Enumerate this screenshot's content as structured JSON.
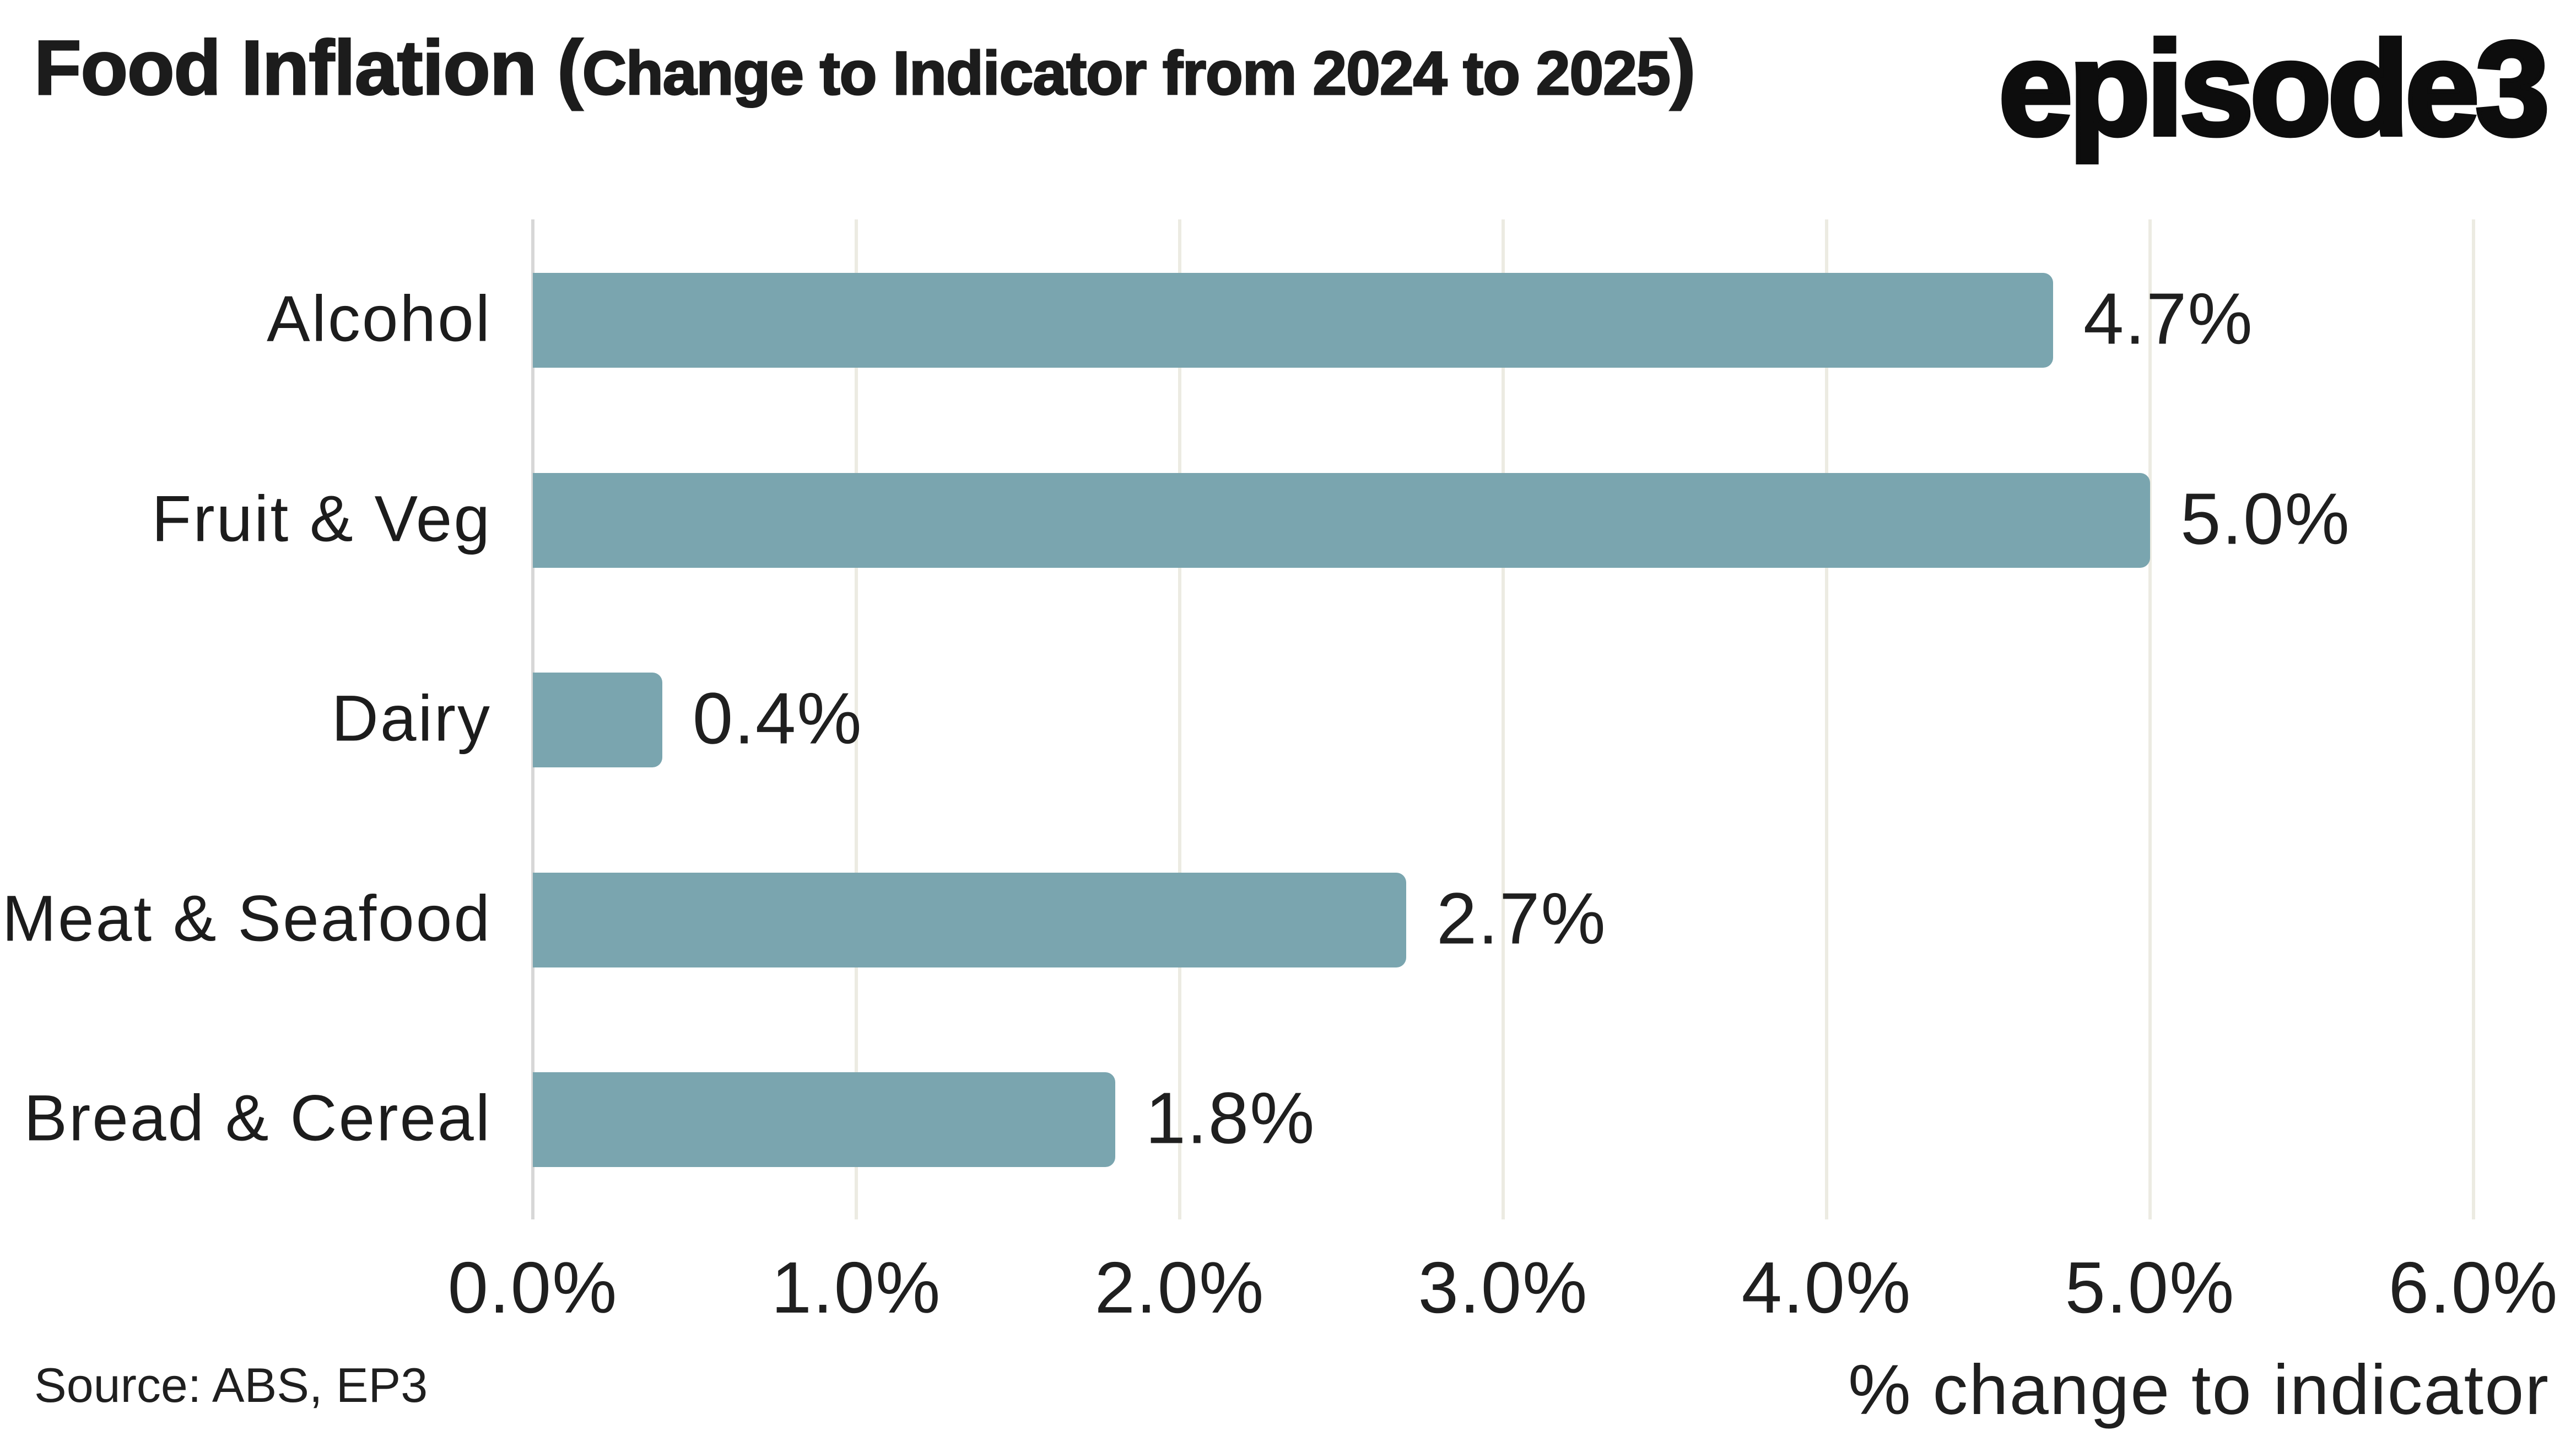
{
  "header": {
    "title_main": "Food Inflation (",
    "title_sub": "Change to Indicator from 2024 to 2025",
    "title_close": ")",
    "logo": "episode3"
  },
  "chart_data": {
    "type": "bar",
    "orientation": "horizontal",
    "title": "Food Inflation (Change to Indicator from 2024 to 2025)",
    "categories": [
      "Alcohol",
      "Fruit & Veg",
      "Dairy",
      "Meat & Seafood",
      "Bread & Cereal"
    ],
    "values": [
      4.7,
      5.0,
      0.4,
      2.7,
      1.8
    ],
    "value_labels": [
      "4.7%",
      "5.0%",
      "0.4%",
      "2.7%",
      "1.8%"
    ],
    "x_ticks": [
      "0.0%",
      "1.0%",
      "2.0%",
      "3.0%",
      "4.0%",
      "5.0%",
      "6.0%"
    ],
    "x_tick_values": [
      0,
      1,
      2,
      3,
      4,
      5,
      6
    ],
    "xlim": [
      0,
      6
    ],
    "xlabel": "% change to indicator",
    "grid": "vertical",
    "legend": "none",
    "bar_color": "#7AA5AF",
    "gridline_color": "#ECEBE2",
    "zero_line_color": "#D7D7D7",
    "text_color": "#1f1f1f"
  },
  "footer": {
    "source": "Source: ABS, EP3",
    "axis_title": "% change to indicator"
  }
}
